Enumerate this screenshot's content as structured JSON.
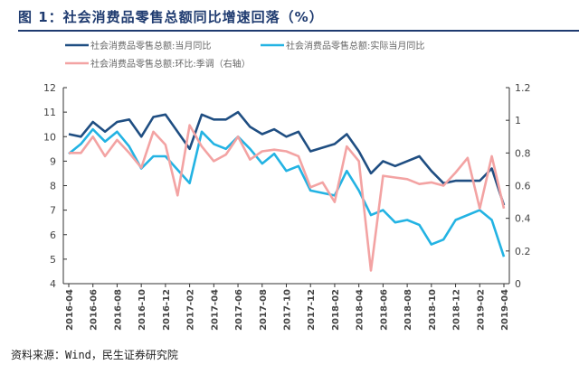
{
  "title": "图 1：社会消费品零售总额同比增速回落（%）",
  "source": "资料来源：Wind，民生证券研究院",
  "chart_data": {
    "type": "line",
    "title": "图 1：社会消费品零售总额同比增速回落（%）",
    "x": [
      "2016-04",
      "2016-05",
      "2016-06",
      "2016-07",
      "2016-08",
      "2016-09",
      "2016-10",
      "2016-11",
      "2016-12",
      "2017-01",
      "2017-02",
      "2017-03",
      "2017-04",
      "2017-05",
      "2017-06",
      "2017-07",
      "2017-08",
      "2017-09",
      "2017-10",
      "2017-11",
      "2017-12",
      "2018-01",
      "2018-02",
      "2018-03",
      "2018-04",
      "2018-05",
      "2018-06",
      "2018-07",
      "2018-08",
      "2018-09",
      "2018-10",
      "2018-11",
      "2018-12",
      "2019-01",
      "2019-02",
      "2019-03",
      "2019-04"
    ],
    "x_tick_labels": [
      "2016-04",
      "2016-06",
      "2016-08",
      "2016-10",
      "2016-12",
      "2017-02",
      "2017-04",
      "2017-06",
      "2017-08",
      "2017-10",
      "2017-12",
      "2018-02",
      "2018-04",
      "2018-06",
      "2018-08",
      "2018-10",
      "2018-12",
      "2019-02",
      "2019-04"
    ],
    "y_left": {
      "range": [
        4,
        12
      ],
      "ticks": [
        4,
        5,
        6,
        7,
        8,
        9,
        10,
        11,
        12
      ]
    },
    "y_right": {
      "range": [
        0,
        1.2
      ],
      "ticks": [
        "0",
        "0.2",
        "0.4",
        "0.6",
        "0.8",
        "1",
        "1.2"
      ]
    },
    "grid": false,
    "legend_placement": "top",
    "series": [
      {
        "name": "社会消费品零售总额:当月同比",
        "axis": "left",
        "color": "#1f4e82",
        "values": [
          10.1,
          10.0,
          10.6,
          10.2,
          10.6,
          10.7,
          10.0,
          10.8,
          10.9,
          null,
          9.5,
          10.9,
          10.7,
          10.7,
          11.0,
          10.4,
          10.1,
          10.3,
          10.0,
          10.2,
          9.4,
          null,
          9.7,
          10.1,
          9.4,
          8.5,
          9.0,
          8.8,
          9.0,
          9.2,
          8.6,
          8.1,
          8.2,
          null,
          8.2,
          8.7,
          7.2
        ]
      },
      {
        "name": "社会消费品零售总额:实际当月同比",
        "axis": "left",
        "color": "#23b3e3",
        "values": [
          9.3,
          9.7,
          10.3,
          9.8,
          10.2,
          9.6,
          8.7,
          9.2,
          9.2,
          null,
          8.1,
          10.2,
          9.7,
          9.5,
          10.0,
          9.5,
          8.9,
          9.3,
          8.6,
          8.8,
          7.8,
          null,
          7.6,
          8.6,
          7.8,
          6.8,
          7.0,
          6.5,
          6.6,
          6.4,
          5.6,
          5.8,
          6.6,
          null,
          7.0,
          6.6,
          5.1
        ]
      },
      {
        "name": "社会消费品零售总额:环比:季调（右轴）",
        "axis": "right",
        "color": "#f3a3a3",
        "values": [
          0.8,
          0.8,
          0.9,
          0.78,
          0.88,
          0.8,
          0.71,
          0.93,
          0.85,
          0.54,
          0.97,
          0.84,
          0.75,
          0.79,
          0.9,
          0.76,
          0.81,
          0.82,
          0.81,
          0.78,
          0.59,
          0.62,
          0.5,
          0.84,
          0.75,
          0.08,
          0.66,
          0.65,
          0.64,
          0.61,
          0.62,
          0.6,
          0.68,
          0.77,
          0.46,
          0.78,
          0.46
        ]
      }
    ]
  }
}
